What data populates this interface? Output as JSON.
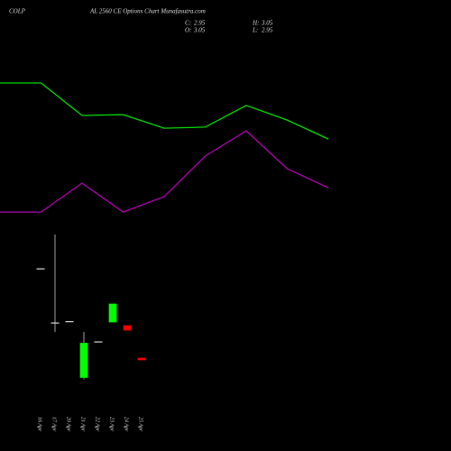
{
  "header": {
    "title_left": "COLP",
    "title_right": "AL 2560  CE Options Chart Munafasutra.com",
    "ohlc": [
      {
        "label": "C:",
        "value": 2.95
      },
      {
        "label": "H:",
        "value": 3.05
      },
      {
        "label": "O:",
        "value": 3.05
      },
      {
        "label": "L:",
        "value": 2.95
      }
    ]
  },
  "chart_data": [
    {
      "type": "line",
      "x": [
        0,
        1,
        2,
        3,
        4,
        5,
        6,
        7,
        8
      ],
      "xlim": [
        0,
        8
      ],
      "ylim": [
        1.6,
        15.6
      ],
      "series": [
        {
          "color": "#00dd00",
          "values": [
            13.2,
            13.2,
            12.0,
            12.03,
            11.53,
            11.57,
            12.37,
            11.83,
            11.13
          ]
        },
        {
          "color": "#b000b0",
          "values": [
            8.43,
            8.43,
            9.5,
            8.43,
            9.0,
            10.5,
            11.43,
            10.03,
            9.33
          ]
        }
      ]
    },
    {
      "type": "candlestick",
      "ylim": [
        1.6,
        15.6
      ],
      "up_color": "#00ff00",
      "down_color": "#ff0000",
      "flat_color": "#dddddd",
      "categories": [
        "16 Apr",
        "17 Apr",
        "20 Apr",
        "21 Apr",
        "22 Apr",
        "23 Apr",
        "24 Apr",
        "25 Apr"
      ],
      "open": [
        6.35,
        4.35,
        4.4,
        2.3,
        3.65,
        4.35,
        4.25,
        3.05
      ],
      "high": [
        6.35,
        7.6,
        4.4,
        4.0,
        3.65,
        5.05,
        4.25,
        3.05
      ],
      "low": [
        6.35,
        4.0,
        4.4,
        2.25,
        3.65,
        4.35,
        4.05,
        2.95
      ],
      "close": [
        6.35,
        4.35,
        4.4,
        3.6,
        3.65,
        5.05,
        4.05,
        2.95
      ]
    }
  ]
}
